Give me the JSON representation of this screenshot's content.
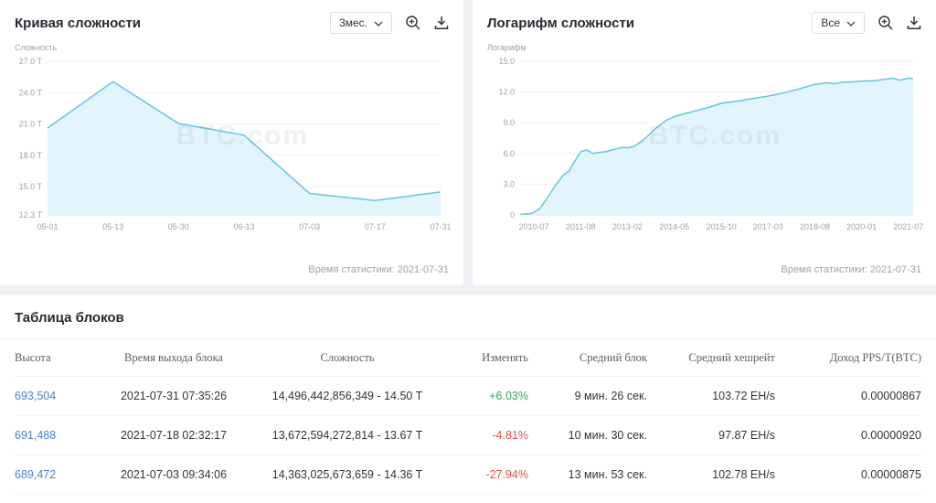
{
  "panels": [
    {
      "title": "Кривая сложности",
      "range": "3мес.",
      "watermark": "BTC.com",
      "stat_time": "Время статистики: 2021-07-31"
    },
    {
      "title": "Логарифм сложности",
      "range": "Все",
      "watermark": "BTC.com",
      "stat_time": "Время статистики: 2021-07-31"
    }
  ],
  "chart_data": [
    {
      "type": "area",
      "title": "Кривая сложности",
      "ylabel": "Сложность",
      "ylim": [
        12.3,
        27.0
      ],
      "yticks": [
        {
          "value": 12.3,
          "label": "12.3 T"
        },
        {
          "value": 15.0,
          "label": "15.0 T"
        },
        {
          "value": 18.0,
          "label": "18.0 T"
        },
        {
          "value": 21.0,
          "label": "21.0 T"
        },
        {
          "value": 24.0,
          "label": "24.0 T"
        },
        {
          "value": 27.0,
          "label": "27.0 T"
        }
      ],
      "xticks": [
        {
          "pos": 0,
          "label": "05-01"
        },
        {
          "pos": 0.1667,
          "label": "05-13"
        },
        {
          "pos": 0.3333,
          "label": "05-30"
        },
        {
          "pos": 0.5,
          "label": "06-13"
        },
        {
          "pos": 0.6667,
          "label": "07-03"
        },
        {
          "pos": 0.8333,
          "label": "07-17"
        },
        {
          "pos": 1,
          "label": "07-31"
        }
      ],
      "points": [
        [
          0,
          20.61
        ],
        [
          0.1667,
          25.05
        ],
        [
          0.3333,
          21.05
        ],
        [
          0.5,
          19.93
        ],
        [
          0.6667,
          14.36
        ],
        [
          0.8333,
          13.67
        ],
        [
          1,
          14.5
        ]
      ],
      "line_color": "#5fc6e8",
      "area_color": "#e3f5fc"
    },
    {
      "type": "area",
      "title": "Логарифм сложности",
      "ylabel": "Логарифм",
      "ylim": [
        0,
        15
      ],
      "yticks": [
        {
          "value": 0,
          "label": "0"
        },
        {
          "value": 3,
          "label": "3.0"
        },
        {
          "value": 6,
          "label": "6.0"
        },
        {
          "value": 9,
          "label": "9.0"
        },
        {
          "value": 12,
          "label": "12.0"
        },
        {
          "value": 15,
          "label": "15.0"
        }
      ],
      "xticks": [
        {
          "pos": 0.035,
          "label": "2010-07"
        },
        {
          "pos": 0.154,
          "label": "2011-08"
        },
        {
          "pos": 0.273,
          "label": "2013-02"
        },
        {
          "pos": 0.392,
          "label": "2014-05"
        },
        {
          "pos": 0.512,
          "label": "2015-10"
        },
        {
          "pos": 0.631,
          "label": "2017-03"
        },
        {
          "pos": 0.75,
          "label": "2018-08"
        },
        {
          "pos": 0.869,
          "label": "2020-01"
        },
        {
          "pos": 0.988,
          "label": "2021-07"
        }
      ],
      "points": [
        [
          0,
          0.05
        ],
        [
          0.03,
          0.15
        ],
        [
          0.05,
          0.6
        ],
        [
          0.07,
          1.7
        ],
        [
          0.09,
          2.9
        ],
        [
          0.11,
          3.9
        ],
        [
          0.125,
          4.3
        ],
        [
          0.14,
          5.3
        ],
        [
          0.155,
          6.2
        ],
        [
          0.17,
          6.35
        ],
        [
          0.185,
          6.0
        ],
        [
          0.2,
          6.1
        ],
        [
          0.22,
          6.2
        ],
        [
          0.245,
          6.45
        ],
        [
          0.26,
          6.6
        ],
        [
          0.275,
          6.55
        ],
        [
          0.29,
          6.7
        ],
        [
          0.31,
          7.2
        ],
        [
          0.33,
          7.9
        ],
        [
          0.35,
          8.6
        ],
        [
          0.37,
          9.2
        ],
        [
          0.392,
          9.6
        ],
        [
          0.42,
          9.9
        ],
        [
          0.45,
          10.2
        ],
        [
          0.48,
          10.5
        ],
        [
          0.512,
          10.9
        ],
        [
          0.55,
          11.1
        ],
        [
          0.59,
          11.35
        ],
        [
          0.631,
          11.6
        ],
        [
          0.67,
          11.9
        ],
        [
          0.71,
          12.3
        ],
        [
          0.75,
          12.75
        ],
        [
          0.78,
          12.9
        ],
        [
          0.8,
          12.8
        ],
        [
          0.82,
          12.95
        ],
        [
          0.85,
          13.0
        ],
        [
          0.869,
          13.05
        ],
        [
          0.9,
          13.1
        ],
        [
          0.93,
          13.25
        ],
        [
          0.95,
          13.35
        ],
        [
          0.965,
          13.15
        ],
        [
          0.988,
          13.35
        ],
        [
          1,
          13.3
        ]
      ],
      "line_color": "#5fc6e8",
      "area_color": "#e3f5fc"
    }
  ],
  "table": {
    "title": "Таблица блоков",
    "columns": [
      "Высота",
      "Время выхода блока",
      "Сложность",
      "Изменять",
      "Средний блок",
      "Средний хешрейт",
      "Доход PPS/T(BTC)"
    ],
    "colors": {
      "positive": "#2ca55e",
      "negative": "#e2514c",
      "link": "#4486c8"
    },
    "rows": [
      {
        "height": "693,504",
        "block_time": "2021-07-31 07:35:26",
        "difficulty": "14,496,442,856,349 - 14.50 T",
        "change": "+6.03%",
        "change_color": "#2ca55e",
        "avg_block": "9 мин. 26 сек.",
        "avg_hashrate": "103.72 EH/s",
        "pps_income": "0.00000867"
      },
      {
        "height": "691,488",
        "block_time": "2021-07-18 02:32:17",
        "difficulty": "13,672,594,272,814 - 13.67 T",
        "change": "-4.81%",
        "change_color": "#e2514c",
        "avg_block": "10 мин. 30 сек.",
        "avg_hashrate": "97.87 EH/s",
        "pps_income": "0.00000920"
      },
      {
        "height": "689,472",
        "block_time": "2021-07-03 09:34:06",
        "difficulty": "14,363,025,673,659 - 14.36 T",
        "change": "-27.94%",
        "change_color": "#e2514c",
        "avg_block": "13 мин. 53 сек.",
        "avg_hashrate": "102.78 EH/s",
        "pps_income": "0.00000875"
      }
    ]
  }
}
